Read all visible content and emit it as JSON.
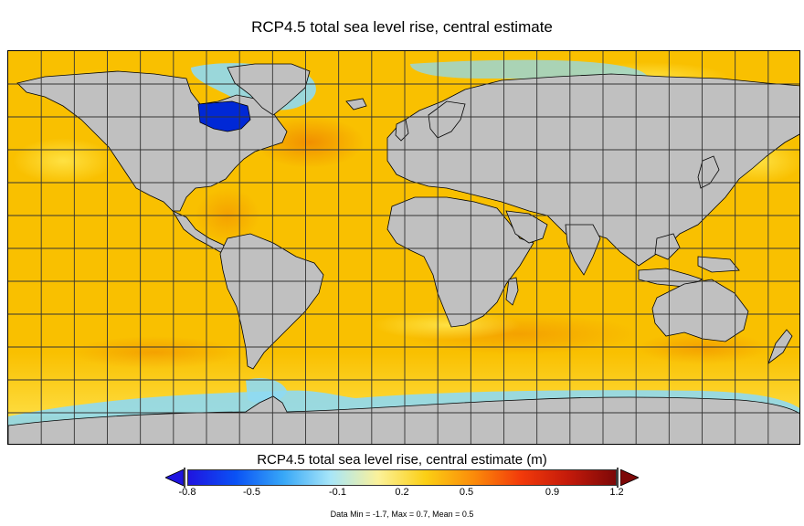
{
  "title": "RCP4.5 total sea level rise, central estimate",
  "map": {
    "projection": "equirectangular",
    "grid_lon_step_deg": 15,
    "grid_lat_step_deg": 15,
    "colors": {
      "ocean_base": "#f9c000",
      "ocean_high": "#f29500",
      "ocean_low": "#ffe74a",
      "coast_low": "#8fd9f2",
      "land": "#c0c0c0",
      "deep_negative": "#0028d6",
      "grid": "#333333"
    }
  },
  "colorbar": {
    "title": "RCP4.5 total sea level rise, central estimate (m)",
    "ticks": [
      "-0.8",
      "-0.5",
      "-0.1",
      "0.2",
      "0.5",
      "0.9",
      "1.2"
    ],
    "range": [
      -0.8,
      1.2
    ],
    "stops": [
      "#1f14e0",
      "#0a52f5",
      "#37a7f7",
      "#a8e6f8",
      "#fbf19a",
      "#fbcf14",
      "#fb8c0a",
      "#f23a0a",
      "#c41a0a",
      "#7d0808"
    ],
    "under_color": "#1f14e0",
    "over_color": "#7d0808"
  },
  "stats": "Data Min = -1.7, Max = 0.7, Mean = 0.5"
}
